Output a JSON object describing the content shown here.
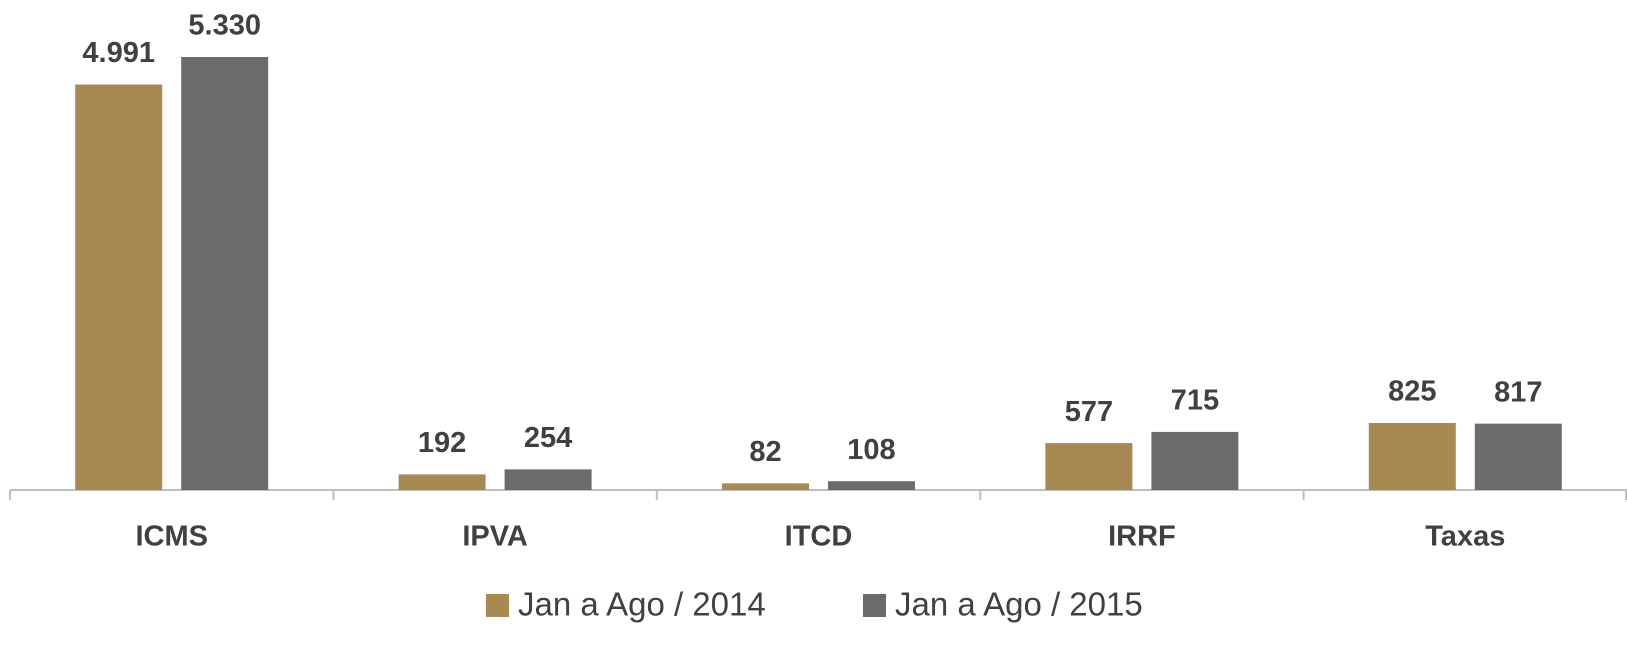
{
  "chart_data": {
    "type": "bar",
    "categories": [
      "ICMS",
      "IPVA",
      "ITCD",
      "IRRF",
      "Taxas"
    ],
    "series": [
      {
        "name": "Jan a Ago / 2014",
        "color": "#a88952",
        "values": [
          4991,
          192,
          82,
          577,
          825
        ],
        "value_labels": [
          "4.991",
          "192",
          "82",
          "577",
          "825"
        ]
      },
      {
        "name": "Jan a Ago / 2015",
        "color": "#6b6b6d",
        "values": [
          5330,
          254,
          108,
          715,
          817
        ],
        "value_labels": [
          "5.330",
          "254",
          "108",
          "715",
          "817"
        ]
      }
    ],
    "legend": "bottom"
  }
}
